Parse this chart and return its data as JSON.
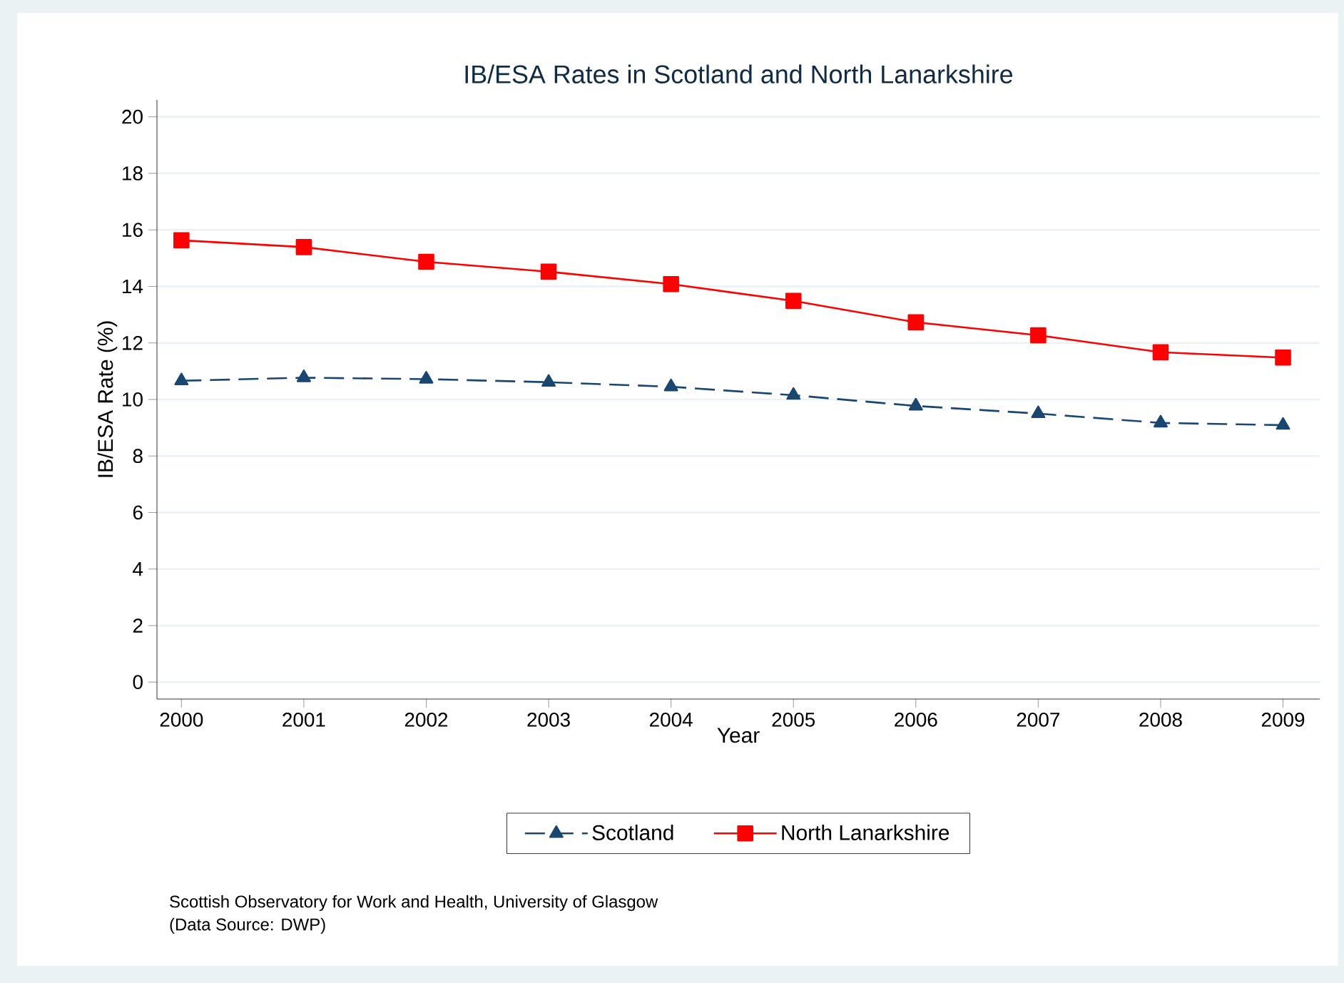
{
  "chart_data": {
    "type": "line",
    "title": "IB/ESA Rates in Scotland and North Lanarkshire",
    "xlabel": "Year",
    "ylabel": "IB/ESA Rate (%)",
    "x": [
      2000,
      2001,
      2002,
      2003,
      2004,
      2005,
      2006,
      2007,
      2008,
      2009
    ],
    "xlim": [
      1999.8,
      2009.3
    ],
    "xticks": [
      2000,
      2001,
      2002,
      2003,
      2004,
      2005,
      2006,
      2007,
      2008,
      2009
    ],
    "ylim": [
      -0.6,
      20.6
    ],
    "yticks": [
      0,
      2,
      4,
      6,
      8,
      10,
      12,
      14,
      16,
      18,
      20
    ],
    "grid": "y",
    "legend": "bottom",
    "series": [
      {
        "name": "Scotland",
        "color": "#1a476f",
        "marker": "triangle",
        "line_style": "dashed",
        "values": [
          10.66,
          10.77,
          10.72,
          10.61,
          10.45,
          10.15,
          9.77,
          9.5,
          9.17,
          9.09
        ]
      },
      {
        "name": "North Lanarkshire",
        "color": "#ff0000",
        "marker": "square",
        "line_style": "solid",
        "values": [
          15.63,
          15.39,
          14.87,
          14.52,
          14.08,
          13.49,
          12.73,
          12.27,
          11.67,
          11.48
        ]
      }
    ],
    "annotations": [
      "Scottish Observatory for Work and Health, University of Glasgow",
      "(Data Source: DWP)"
    ]
  }
}
